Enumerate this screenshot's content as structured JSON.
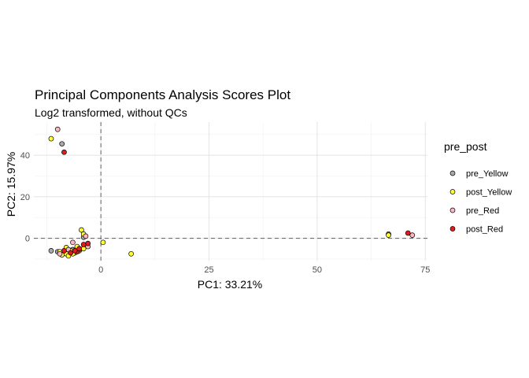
{
  "chart_data": {
    "type": "scatter",
    "title": "Principal Components Analysis Scores Plot",
    "subtitle": "Log2 transformed, without QCs",
    "xlabel": "PC1: 33.21%",
    "ylabel": "PC2: 15.97%",
    "xlim": [
      -15.5,
      75.5
    ],
    "ylim": [
      -10.8,
      56
    ],
    "x_ticks": [
      0,
      25,
      50,
      75
    ],
    "y_ticks": [
      0,
      20,
      40
    ],
    "grid": true,
    "reference_lines": {
      "x": 0,
      "y": 0
    },
    "legend": {
      "title": "pre_post",
      "position": "right"
    },
    "series": [
      {
        "name": "pre_Yellow",
        "color": "#A9A9A9",
        "points": [
          [
            -9,
            45.5
          ],
          [
            -11.5,
            -6
          ],
          [
            -10,
            -6.5
          ],
          [
            -4,
            0.5
          ],
          [
            -6.5,
            -5.5
          ],
          [
            -8,
            -7
          ],
          [
            66.5,
            2
          ]
        ]
      },
      {
        "name": "post_Yellow",
        "color": "#FFFF33",
        "points": [
          [
            -11.5,
            48
          ],
          [
            -4.5,
            4
          ],
          [
            -4,
            2
          ],
          [
            -9.5,
            -6.5
          ],
          [
            -9,
            -8
          ],
          [
            -8,
            -7.5
          ],
          [
            -7.5,
            -8.5
          ],
          [
            -8,
            -4.5
          ],
          [
            -7,
            -6
          ],
          [
            -6,
            -7
          ],
          [
            -5,
            -6
          ],
          [
            -4,
            -5
          ],
          [
            -5.5,
            -4
          ],
          [
            -6.5,
            -7.5
          ],
          [
            -5,
            -5.5
          ],
          [
            0.5,
            -2
          ],
          [
            7,
            -7.5
          ],
          [
            66.5,
            1.5
          ]
        ]
      },
      {
        "name": "pre_Red",
        "color": "#FFB6C1",
        "points": [
          [
            -10,
            52.5
          ],
          [
            -3.5,
            1
          ],
          [
            -3,
            -4
          ],
          [
            -6.5,
            -2
          ],
          [
            -9.5,
            -7.5
          ],
          [
            -7.5,
            -5.5
          ],
          [
            72,
            1.5
          ]
        ]
      },
      {
        "name": "post_Red",
        "color": "#E41A1C",
        "points": [
          [
            -8.5,
            41.5
          ],
          [
            -3,
            -2.5
          ],
          [
            -4,
            -3
          ],
          [
            -5.5,
            -6.5
          ],
          [
            -6,
            -6
          ],
          [
            -8.5,
            -6
          ],
          [
            -7,
            -7
          ],
          [
            -5,
            -5
          ],
          [
            71,
            2.5
          ]
        ]
      }
    ]
  }
}
